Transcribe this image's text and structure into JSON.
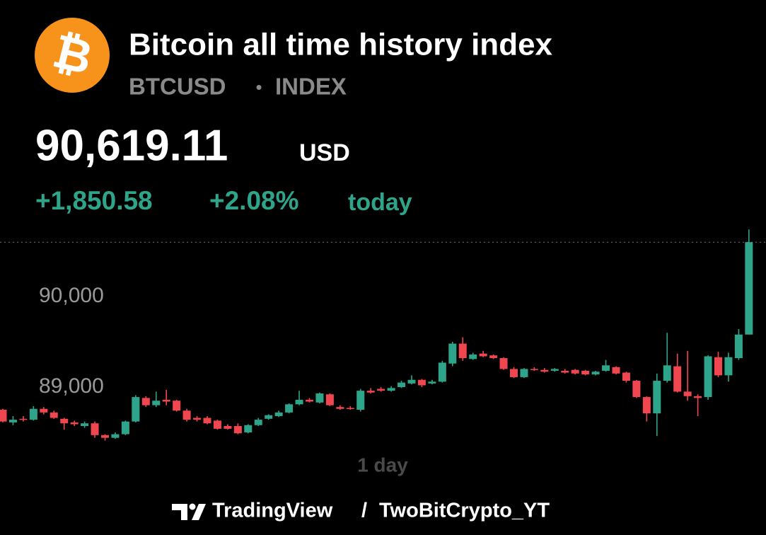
{
  "header": {
    "logo_symbol": "₿",
    "title": "Bitcoin all time history index",
    "symbol": "BTCUSD",
    "separator": "•",
    "market": "INDEX",
    "price": "90,619.11",
    "currency": "USD",
    "change": "+1,850.58",
    "change_percent": "+2.08%",
    "change_period": "today"
  },
  "chart_data": {
    "type": "candlestick",
    "interval": "1 day",
    "up_color": "#2ea58a",
    "down_color": "#f0464f",
    "ylim": [
      88300,
      90800
    ],
    "yticks": [
      {
        "value": 89000,
        "label": "89,000"
      },
      {
        "value": 90000,
        "label": "90,000"
      }
    ],
    "open": [
      88750,
      88610,
      88650,
      88640,
      88760,
      88720,
      88650,
      88610,
      88570,
      88600,
      88470,
      88440,
      88480,
      88620,
      88880,
      88800,
      88860,
      88850,
      88740,
      88660,
      88660,
      88630,
      88570,
      88570,
      88500,
      88580,
      88650,
      88680,
      88720,
      88810,
      88860,
      88830,
      88920,
      88780,
      88770,
      88750,
      88960,
      88980,
      88960,
      89000,
      89040,
      89080,
      89040,
      89060,
      89260,
      89480,
      89310,
      89370,
      89350,
      89320,
      89200,
      89110,
      89200,
      89190,
      89180,
      89180,
      89190,
      89180,
      89140,
      89180,
      89220,
      89160,
      89070,
      88890,
      88710,
      89070,
      89230,
      88950,
      88900,
      88890,
      89330,
      89130,
      89320,
      89580
    ],
    "high": [
      88760,
      88680,
      88680,
      88790,
      88780,
      88740,
      88660,
      88630,
      88620,
      88620,
      88480,
      88500,
      88630,
      88910,
      88900,
      88950,
      88970,
      88860,
      88760,
      88680,
      88680,
      88640,
      88590,
      88600,
      88590,
      88660,
      88700,
      88740,
      88820,
      88960,
      88880,
      88940,
      88930,
      88800,
      88790,
      88980,
      88990,
      89000,
      89010,
      89070,
      89130,
      89090,
      89080,
      89290,
      89500,
      89550,
      89380,
      89400,
      89360,
      89330,
      89220,
      89210,
      89220,
      89210,
      89210,
      89200,
      89200,
      89190,
      89180,
      89300,
      89230,
      89170,
      89080,
      88900,
      89150,
      89600,
      89370,
      89400,
      88920,
      89350,
      89390,
      89380,
      89640,
      90740
    ],
    "low": [
      88610,
      88580,
      88620,
      88630,
      88700,
      88650,
      88530,
      88570,
      88550,
      88440,
      88410,
      88430,
      88470,
      88610,
      88780,
      88780,
      88800,
      88730,
      88620,
      88620,
      88590,
      88530,
      88530,
      88480,
      88490,
      88570,
      88640,
      88670,
      88710,
      88800,
      88830,
      88820,
      88790,
      88750,
      88750,
      88730,
      88930,
      88950,
      88950,
      88990,
      89030,
      89000,
      89030,
      89050,
      89230,
      89290,
      89300,
      89330,
      89310,
      89190,
      89100,
      89100,
      89180,
      89160,
      89170,
      89150,
      89140,
      89130,
      89130,
      89170,
      89140,
      89050,
      88880,
      88620,
      88460,
      89050,
      88940,
      88850,
      88680,
      88860,
      89110,
      89060,
      89300,
      89580
    ],
    "close": [
      88620,
      88640,
      88640,
      88760,
      88720,
      88660,
      88600,
      88590,
      88600,
      88470,
      88440,
      88480,
      88620,
      88890,
      88800,
      88850,
      88840,
      88740,
      88640,
      88640,
      88600,
      88540,
      88540,
      88490,
      88580,
      88640,
      88690,
      88720,
      88810,
      88860,
      88840,
      88930,
      88800,
      88760,
      88760,
      88960,
      88940,
      88960,
      88990,
      89050,
      89080,
      89020,
      89060,
      89270,
      89480,
      89320,
      89360,
      89340,
      89320,
      89200,
      89110,
      89200,
      89190,
      89170,
      89200,
      89160,
      89150,
      89140,
      89170,
      89240,
      89150,
      89070,
      88890,
      88710,
      89070,
      89240,
      88950,
      88900,
      88880,
      89340,
      89130,
      89330,
      89580,
      90600
    ]
  },
  "footer": {
    "brand": "TradingView",
    "separator": "/",
    "author": "TwoBitCrypto_YT"
  }
}
